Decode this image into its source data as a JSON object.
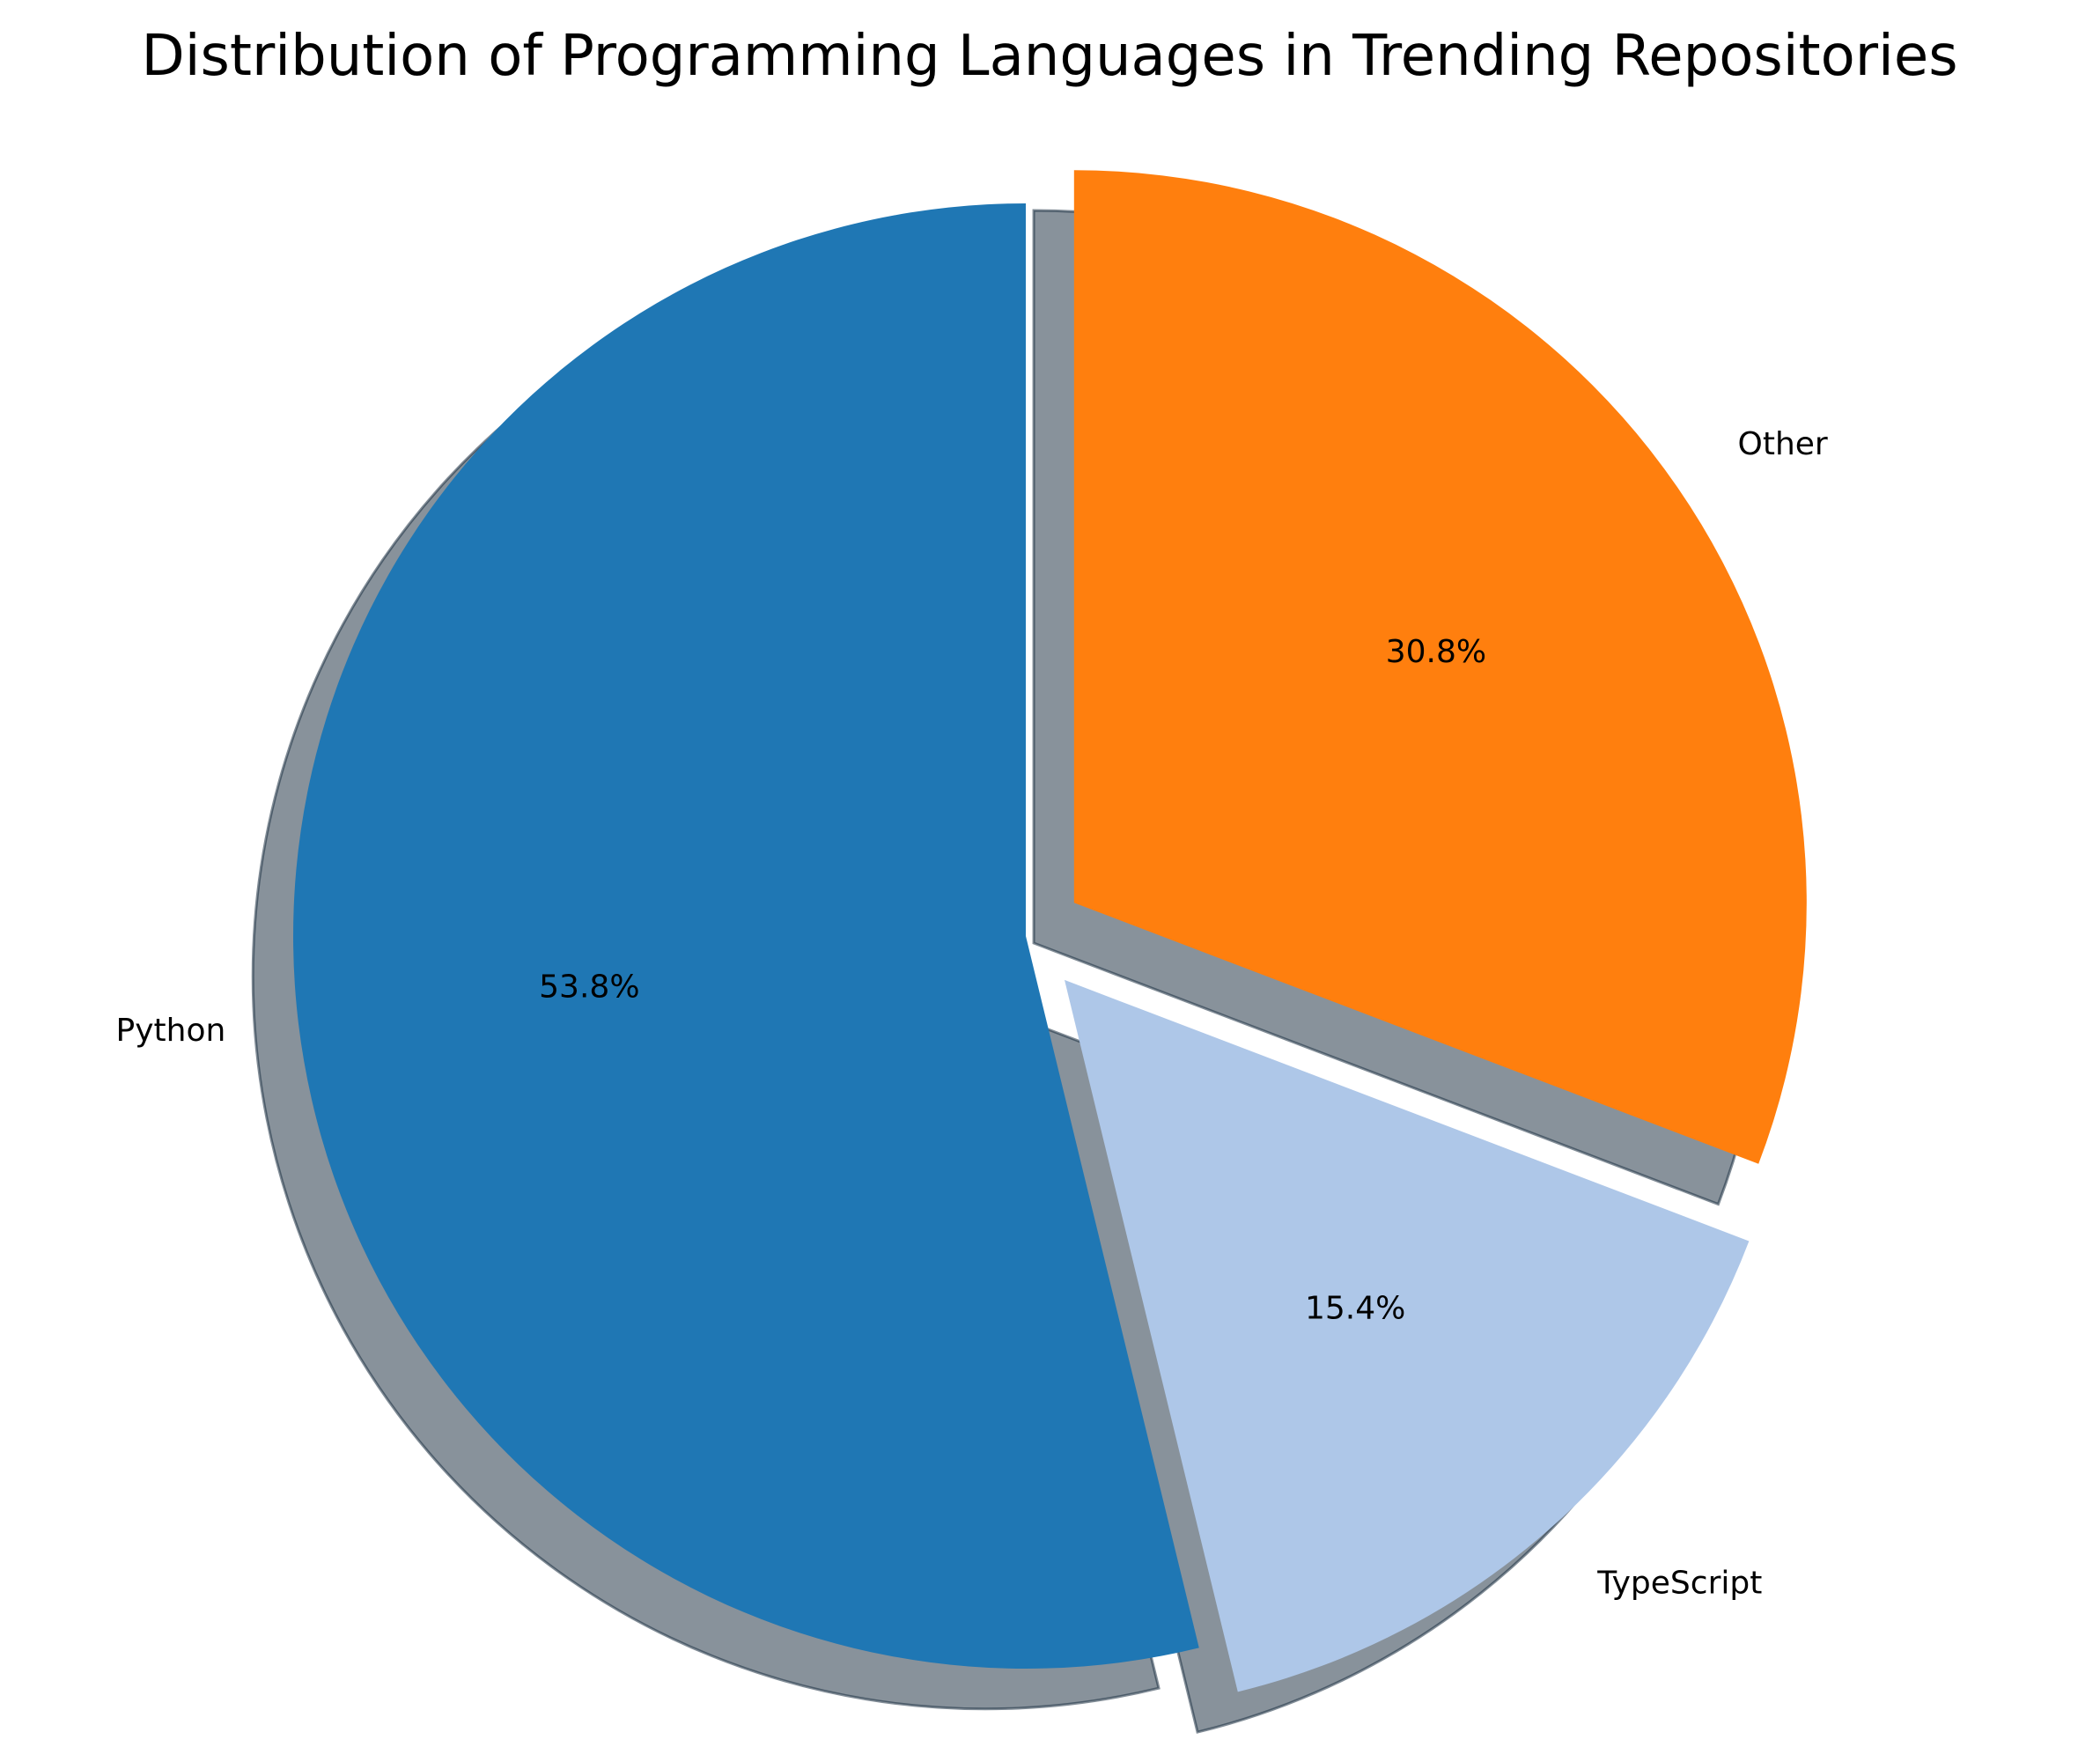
{
  "chart_data": {
    "type": "pie",
    "title": "Distribution of Programming Languages in Trending Repositories",
    "categories": [
      "Python",
      "TypeScript",
      "Other"
    ],
    "values": [
      53.8,
      15.4,
      30.8
    ],
    "percent_labels": [
      "53.8%",
      "15.4%",
      "30.8%"
    ],
    "colors": [
      "#1f77b4",
      "#aec7e8",
      "#ff7f0e"
    ],
    "exploded": [
      false,
      true,
      true
    ],
    "shadow": true,
    "start_angle_deg": 90,
    "direction": "counterclockwise"
  }
}
